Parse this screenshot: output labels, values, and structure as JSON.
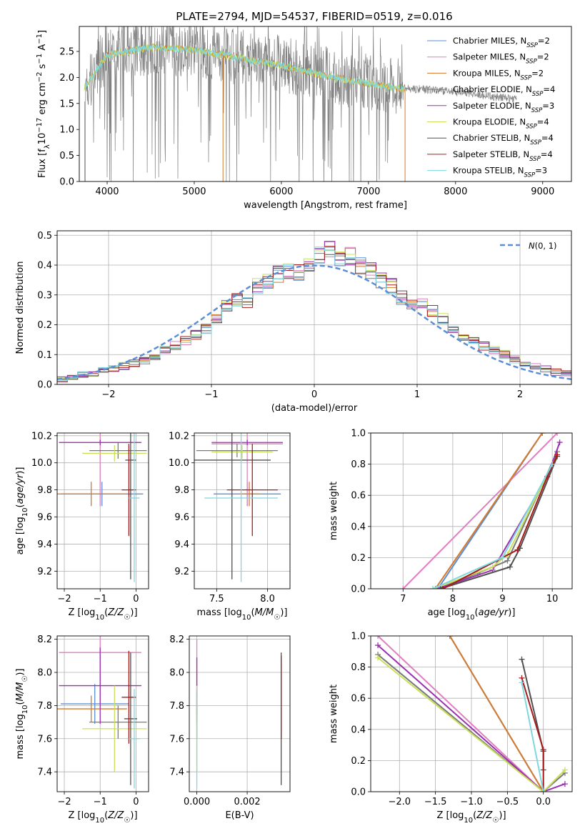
{
  "title": "PLATE=2794, MJD=54537, FIBERID=0519, z=0.016",
  "series": [
    {
      "name": "Chabrier MILES, N_SSP=2",
      "label_main": "Chabrier MILES, N",
      "label_sub": "SSP",
      "label_tail": "=2",
      "color": "#5b8ed6",
      "imf": "Chabrier",
      "lib": "MILES"
    },
    {
      "name": "Salpeter MILES, N_SSP=2",
      "label_main": "Salpeter MILES, N",
      "label_sub": "SSP",
      "label_tail": "=2",
      "color": "#e07fbf",
      "imf": "Salpeter",
      "lib": "MILES"
    },
    {
      "name": "Kroupa MILES, N_SSP=2",
      "label_main": "Kroupa MILES, N",
      "label_sub": "SSP",
      "label_tail": "=2",
      "color": "#d47a2a",
      "imf": "Kroupa",
      "lib": "MILES"
    },
    {
      "name": "Chabrier ELODIE, N_SSP=4",
      "label_main": "Chabrier ELODIE, N",
      "label_sub": "SSP",
      "label_tail": "=4",
      "color": "#7a7a7a",
      "imf": "Chabrier",
      "lib": "ELODIE"
    },
    {
      "name": "Salpeter ELODIE, N_SSP=3",
      "label_main": "Salpeter ELODIE, N",
      "label_sub": "SSP",
      "label_tail": "=3",
      "color": "#9b2fb0",
      "imf": "Salpeter",
      "lib": "ELODIE"
    },
    {
      "name": "Kroupa ELODIE, N_SSP=4",
      "label_main": "Kroupa ELODIE, N",
      "label_sub": "SSP",
      "label_tail": "=4",
      "color": "#c9e05a",
      "imf": "Kroupa",
      "lib": "ELODIE"
    },
    {
      "name": "Chabrier STELIB, N_SSP=4",
      "label_main": "Chabrier STELIB, N",
      "label_sub": "SSP",
      "label_tail": "=4",
      "color": "#505050",
      "imf": "Chabrier",
      "lib": "STELIB"
    },
    {
      "name": "Salpeter STELIB, N_SSP=4",
      "label_main": "Salpeter STELIB, N",
      "label_sub": "SSP",
      "label_tail": "=4",
      "color": "#a61c1c",
      "imf": "Salpeter",
      "lib": "STELIB"
    },
    {
      "name": "Kroupa STELIB, N_SSP=3",
      "label_main": "Kroupa STELIB, N",
      "label_sub": "SSP",
      "label_tail": "=3",
      "color": "#7fd7df",
      "imf": "Kroupa",
      "lib": "STELIB"
    }
  ],
  "chart_data": [
    {
      "id": "spectrum",
      "type": "line",
      "xlabel": "wavelength [Angstrom, rest frame]",
      "ylabel": "Flux [f_λ 10^-17 erg cm^-2 s^-1 A^-1]",
      "xlim": [
        3680,
        9330
      ],
      "ylim": [
        0,
        2.98
      ],
      "xticks": [
        4000,
        5000,
        6000,
        7000,
        8000,
        9000
      ],
      "yticks": [
        0.0,
        0.5,
        1.0,
        1.5,
        2.0,
        2.5
      ],
      "data_color": "#808080",
      "data_trend": {
        "x": [
          3750,
          4000,
          4500,
          5000,
          5500,
          6000,
          6500,
          7000,
          7400,
          8000,
          8500,
          8700
        ],
        "y": [
          1.85,
          2.45,
          2.6,
          2.55,
          2.4,
          2.25,
          2.05,
          1.9,
          1.8,
          1.72,
          1.62,
          1.58
        ]
      },
      "data_xrange": [
        3740,
        8700
      ],
      "model_xrange": [
        3740,
        7420
      ],
      "model_color": "#7fd7df",
      "model_dropouts": [
        {
          "x": 5330,
          "color": "#d47a2a"
        },
        {
          "x": 6800,
          "color": "#c9e05a"
        },
        {
          "x": 7420,
          "color": "#d47a2a"
        }
      ],
      "spike_seed": 7
    },
    {
      "id": "residuals",
      "type": "step-histogram",
      "xlabel": "(data-model)/error",
      "ylabel": "Normed distribution",
      "xlim": [
        -2.5,
        2.5
      ],
      "ylim": [
        0,
        0.515
      ],
      "xticks": [
        -2,
        -1,
        0,
        1,
        2
      ],
      "yticks": [
        0.0,
        0.1,
        0.2,
        0.3,
        0.4,
        0.5
      ],
      "bin_width": 0.1,
      "reference": {
        "label": "N(0,1)",
        "color": "#5b8ed6",
        "style": "dashed",
        "mean": 0,
        "sigma": 1
      },
      "bin_centers": [
        -2.45,
        -2.35,
        -2.25,
        -2.15,
        -2.05,
        -1.95,
        -1.85,
        -1.75,
        -1.65,
        -1.55,
        -1.45,
        -1.35,
        -1.25,
        -1.15,
        -1.05,
        -0.95,
        -0.85,
        -0.75,
        -0.65,
        -0.55,
        -0.45,
        -0.35,
        -0.25,
        -0.15,
        -0.05,
        0.05,
        0.15,
        0.25,
        0.35,
        0.45,
        0.55,
        0.65,
        0.75,
        0.85,
        0.95,
        1.05,
        1.15,
        1.25,
        1.35,
        1.45,
        1.55,
        1.65,
        1.75,
        1.85,
        1.95,
        2.05,
        2.15,
        2.25,
        2.35,
        2.45
      ],
      "values": [
        0.015,
        0.025,
        0.035,
        0.038,
        0.045,
        0.052,
        0.062,
        0.072,
        0.08,
        0.095,
        0.112,
        0.128,
        0.145,
        0.165,
        0.19,
        0.225,
        0.26,
        0.285,
        0.28,
        0.33,
        0.345,
        0.37,
        0.38,
        0.375,
        0.4,
        0.43,
        0.455,
        0.425,
        0.43,
        0.4,
        0.38,
        0.35,
        0.33,
        0.29,
        0.27,
        0.265,
        0.25,
        0.22,
        0.18,
        0.165,
        0.15,
        0.13,
        0.115,
        0.1,
        0.085,
        0.07,
        0.058,
        0.05,
        0.042,
        0.035
      ],
      "jitter_seed": 11
    },
    {
      "id": "age_vs_Z",
      "type": "errorbar",
      "xlabel": "Z [log10(Z/Z☉)]",
      "ylabel": "age  [log10(age/yr)]",
      "xlim": [
        -2.2,
        0.35
      ],
      "ylim": [
        9.07,
        10.22
      ],
      "xticks": [
        -2,
        -1,
        0
      ],
      "yticks": [
        9.2,
        9.4,
        9.6,
        9.8,
        10.0,
        10.2
      ],
      "points": [
        {
          "s": 0,
          "x": -0.95,
          "xerr": 1.15,
          "y": 9.77,
          "yerr": 0.09
        },
        {
          "s": 1,
          "x": -1.0,
          "xerr": 1.15,
          "y": 10.15,
          "yerr": 0.47
        },
        {
          "s": 2,
          "x": -1.25,
          "xerr": 1.0,
          "y": 9.77,
          "yerr": 0.09
        },
        {
          "s": 3,
          "x": -0.5,
          "xerr": 0.8,
          "y": 10.09,
          "yerr": 0.06
        },
        {
          "s": 4,
          "x": -1.0,
          "xerr": 1.15,
          "y": 10.15,
          "yerr": 0.02
        },
        {
          "s": 5,
          "x": -0.6,
          "xerr": 0.9,
          "y": 10.07,
          "yerr": 0.06
        },
        {
          "s": 6,
          "x": -0.15,
          "xerr": 0.15,
          "y": 10.02,
          "yerr": 0.88
        },
        {
          "s": 7,
          "x": -0.2,
          "xerr": 0.2,
          "y": 9.8,
          "yerr": 0.34
        },
        {
          "s": 8,
          "x": -0.05,
          "xerr": 0.15,
          "y": 9.74,
          "yerr": 0.62
        }
      ]
    },
    {
      "id": "age_vs_mass",
      "type": "errorbar",
      "xlabel": "mass [log10(M/M☉)]",
      "ylabel": "",
      "xlim": [
        7.28,
        8.22
      ],
      "ylim": [
        9.07,
        10.22
      ],
      "xticks": [
        7.5,
        8.0
      ],
      "yticks": [
        9.2,
        9.4,
        9.6,
        9.8,
        10.0,
        10.2
      ],
      "points": [
        {
          "s": 0,
          "x": 7.8,
          "xerr": 0.33,
          "y": 9.77,
          "yerr": 0.09
        },
        {
          "s": 1,
          "x": 7.8,
          "xerr": 0.35,
          "y": 10.14,
          "yerr": 0.46
        },
        {
          "s": 2,
          "x": 7.82,
          "xerr": 0.1,
          "y": 9.77,
          "yerr": 0.09
        },
        {
          "s": 3,
          "x": 7.7,
          "xerr": 0.4,
          "y": 10.09,
          "yerr": 0.05
        },
        {
          "s": 4,
          "x": 7.8,
          "xerr": 0.35,
          "y": 10.15,
          "yerr": 0.02
        },
        {
          "s": 5,
          "x": 7.75,
          "xerr": 0.3,
          "y": 10.08,
          "yerr": 0.05
        },
        {
          "s": 6,
          "x": 7.65,
          "xerr": 0.38,
          "y": 10.02,
          "yerr": 0.88
        },
        {
          "s": 7,
          "x": 7.85,
          "xerr": 0.25,
          "y": 9.8,
          "yerr": 0.34
        },
        {
          "s": 8,
          "x": 7.74,
          "xerr": 0.36,
          "y": 9.74,
          "yerr": 0.62
        }
      ]
    },
    {
      "id": "massweight_vs_age",
      "type": "line",
      "xlabel": "age  [log10(age/yr)]",
      "ylabel": "mass weight",
      "xlim": [
        6.35,
        10.4
      ],
      "ylim": [
        0,
        1.0
      ],
      "xticks": [
        7,
        8,
        9,
        10
      ],
      "yticks": [
        0.0,
        0.2,
        0.4,
        0.6,
        0.8,
        1.0
      ],
      "lines": [
        {
          "s": 0,
          "x": [
            7.7,
            9.8
          ],
          "y": [
            0.0,
            1.0
          ]
        },
        {
          "s": 1,
          "x": [
            7.0,
            10.1
          ],
          "y": [
            0.0,
            1.0
          ]
        },
        {
          "s": 2,
          "x": [
            7.65,
            9.8
          ],
          "y": [
            0.0,
            1.0
          ]
        },
        {
          "s": 3,
          "x": [
            7.7,
            8.5,
            9.1,
            10.1
          ],
          "y": [
            0.0,
            0.1,
            0.18,
            0.88
          ]
        },
        {
          "s": 4,
          "x": [
            7.7,
            8.8,
            9.9,
            10.15
          ],
          "y": [
            0.0,
            0.12,
            0.72,
            0.94
          ]
        },
        {
          "s": 5,
          "x": [
            7.6,
            8.8,
            9.1,
            10.1
          ],
          "y": [
            0.0,
            0.14,
            0.22,
            0.86
          ]
        },
        {
          "s": 6,
          "x": [
            7.75,
            9.15,
            9.35,
            10.1
          ],
          "y": [
            0.0,
            0.14,
            0.26,
            0.85
          ]
        },
        {
          "s": 7,
          "x": [
            7.8,
            9.3,
            9.9,
            10.1
          ],
          "y": [
            0.0,
            0.25,
            0.72,
            0.86
          ]
        },
        {
          "s": 8,
          "x": [
            7.6,
            9.0,
            10.0
          ],
          "y": [
            0.0,
            0.2,
            0.8
          ]
        }
      ]
    },
    {
      "id": "mass_vs_Z",
      "type": "errorbar",
      "xlabel": "Z [log10(Z/Z☉)]",
      "ylabel": "mass [log10(M/M☉)]",
      "xlim": [
        -2.2,
        0.35
      ],
      "ylim": [
        7.28,
        8.22
      ],
      "xticks": [
        -2,
        -1,
        0
      ],
      "yticks": [
        7.4,
        7.6,
        7.8,
        8.0,
        8.2
      ],
      "points": [
        {
          "s": 0,
          "x": -1.15,
          "xerr": 0.95,
          "y": 7.81,
          "yerr": 0.12
        },
        {
          "s": 1,
          "x": -1.0,
          "xerr": 1.15,
          "y": 8.12,
          "yerr": 0.3
        },
        {
          "s": 2,
          "x": -1.25,
          "xerr": 1.0,
          "y": 7.78,
          "yerr": 0.08
        },
        {
          "s": 3,
          "x": -0.5,
          "xerr": 0.8,
          "y": 7.7,
          "yerr": 0.1
        },
        {
          "s": 4,
          "x": -1.0,
          "xerr": 1.15,
          "y": 7.92,
          "yerr": 0.23
        },
        {
          "s": 5,
          "x": -0.6,
          "xerr": 0.9,
          "y": 7.66,
          "yerr": 0.26
        },
        {
          "s": 6,
          "x": -0.15,
          "xerr": 0.18,
          "y": 7.72,
          "yerr": 0.4
        },
        {
          "s": 7,
          "x": -0.2,
          "xerr": 0.2,
          "y": 7.85,
          "yerr": 0.28
        },
        {
          "s": 8,
          "x": -0.05,
          "xerr": 0.15,
          "y": 7.6,
          "yerr": 0.3
        }
      ]
    },
    {
      "id": "mass_vs_ebv",
      "type": "errorbar",
      "xlabel": "E(B-V)",
      "ylabel": "",
      "xlim": [
        -0.0003,
        0.0037
      ],
      "ylim": [
        7.28,
        8.22
      ],
      "xticks": [
        0.0,
        0.002
      ],
      "yticks": [
        7.4,
        7.6,
        7.8,
        8.0,
        8.2
      ],
      "points": [
        {
          "s": 0,
          "x": 0.0,
          "xerr": 0,
          "y": 7.81,
          "yerr": 0.12
        },
        {
          "s": 1,
          "x": 0.0,
          "xerr": 0,
          "y": 8.0,
          "yerr": 0.2
        },
        {
          "s": 2,
          "x": 0.0,
          "xerr": 0,
          "y": 7.78,
          "yerr": 0.08
        },
        {
          "s": 3,
          "x": 0.0,
          "xerr": 0,
          "y": 7.7,
          "yerr": 0.1
        },
        {
          "s": 4,
          "x": 0.0,
          "xerr": 0,
          "y": 7.92,
          "yerr": 0.17
        },
        {
          "s": 5,
          "x": 0.0,
          "xerr": 0,
          "y": 7.66,
          "yerr": 0.26
        },
        {
          "s": 6,
          "x": 0.00335,
          "xerr": 0,
          "y": 7.72,
          "yerr": 0.4
        },
        {
          "s": 7,
          "x": 0.00335,
          "xerr": 0,
          "y": 7.85,
          "yerr": 0.25
        },
        {
          "s": 8,
          "x": 0.0,
          "xerr": 0,
          "y": 7.6,
          "yerr": 0.3
        }
      ]
    },
    {
      "id": "massweight_vs_Z",
      "type": "line",
      "xlabel": "Z [log10(Z/Z☉)]",
      "ylabel": "mass weight",
      "xlim": [
        -2.4,
        0.4
      ],
      "ylim": [
        0,
        1.0
      ],
      "xticks": [
        -2.0,
        -1.5,
        -1.0,
        -0.5,
        0.0
      ],
      "yticks": [
        0.0,
        0.2,
        0.4,
        0.6,
        0.8,
        1.0
      ],
      "lines": [
        {
          "s": 0,
          "x": [
            -1.3,
            0.0
          ],
          "y": [
            1.0,
            0.0
          ]
        },
        {
          "s": 1,
          "x": [
            -2.3,
            0.0
          ],
          "y": [
            1.0,
            0.0
          ]
        },
        {
          "s": 2,
          "x": [
            -1.3,
            0.0
          ],
          "y": [
            1.0,
            0.0
          ]
        },
        {
          "s": 3,
          "x": [
            -2.3,
            0.0,
            0.3
          ],
          "y": [
            0.88,
            0.0,
            0.12
          ]
        },
        {
          "s": 4,
          "x": [
            -2.3,
            0.0,
            0.3
          ],
          "y": [
            0.94,
            0.0,
            0.05
          ]
        },
        {
          "s": 5,
          "x": [
            -2.3,
            0.0,
            0.3
          ],
          "y": [
            0.86,
            0.0,
            0.14
          ]
        },
        {
          "s": 6,
          "x": [
            -0.3,
            0.0,
            0.0
          ],
          "y": [
            0.85,
            0.26,
            0.14
          ]
        },
        {
          "s": 7,
          "x": [
            -0.3,
            0.0,
            0.0
          ],
          "y": [
            0.73,
            0.27,
            0.0
          ]
        },
        {
          "s": 8,
          "x": [
            -0.3,
            0.0
          ],
          "y": [
            0.7,
            0.0
          ]
        }
      ]
    }
  ]
}
